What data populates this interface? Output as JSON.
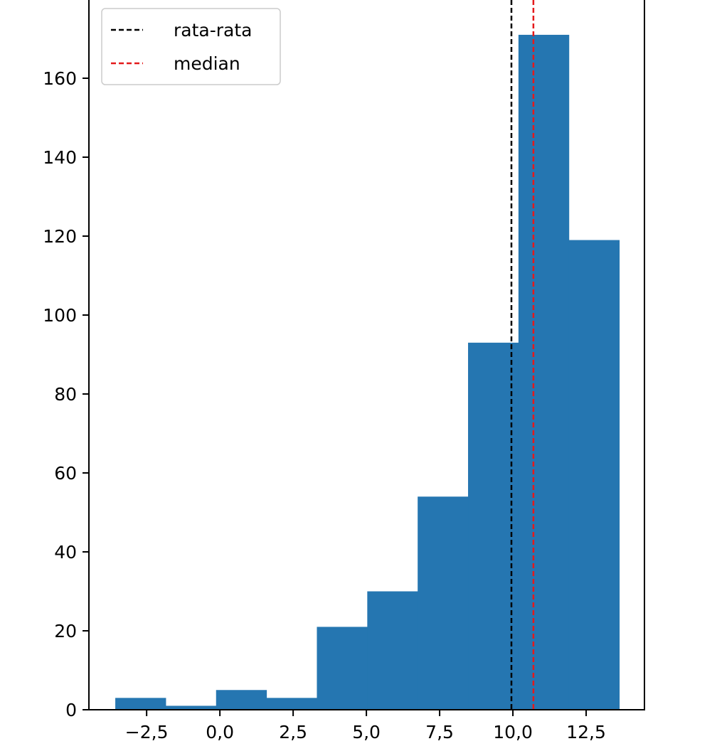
{
  "chart_data": {
    "type": "bar",
    "subtype": "histogram",
    "bin_edges": [
      -3.57,
      -1.85,
      -0.13,
      1.59,
      3.31,
      5.03,
      6.75,
      8.47,
      10.19,
      11.91,
      13.63
    ],
    "values": [
      3,
      1,
      5,
      3,
      21,
      30,
      54,
      93,
      171,
      119
    ],
    "bar_color": "#2576b1",
    "xlim": [
      -4.47,
      14.49
    ],
    "ylim": [
      0,
      180
    ],
    "x_ticks": [
      -2.5,
      0.0,
      2.5,
      5.0,
      7.5,
      10.0,
      12.5
    ],
    "x_tick_labels": [
      "−2,5",
      "0,0",
      "2,5",
      "5,0",
      "7,5",
      "10,0",
      "12,5"
    ],
    "y_ticks": [
      0,
      20,
      40,
      60,
      80,
      100,
      120,
      140,
      160
    ],
    "y_tick_labels": [
      "0",
      "20",
      "40",
      "60",
      "80",
      "100",
      "120",
      "140",
      "160"
    ],
    "grid": false,
    "vlines": [
      {
        "name": "rata-rata",
        "x": 9.95,
        "color": "#000000",
        "style": "dashed"
      },
      {
        "name": "median",
        "x": 10.7,
        "color": "#e41a1c",
        "style": "dashed"
      }
    ],
    "legend": {
      "placement": "top-left",
      "entries": [
        "rata-rata",
        "median"
      ]
    }
  }
}
